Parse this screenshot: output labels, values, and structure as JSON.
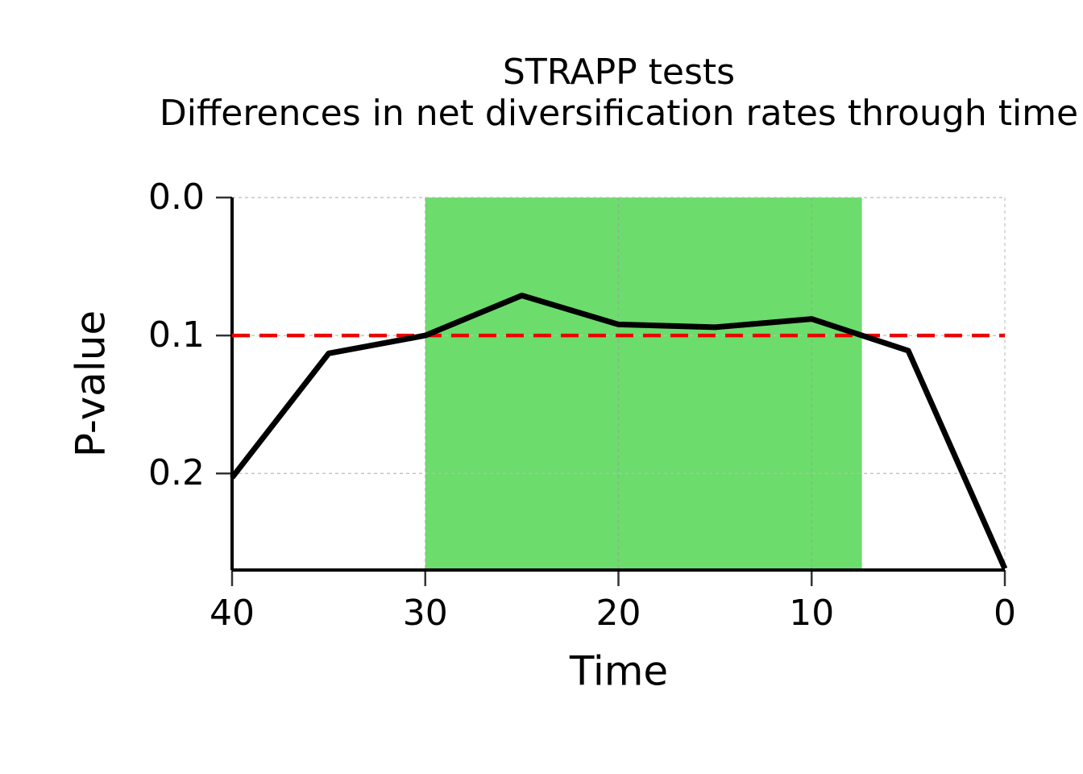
{
  "chart_data": {
    "type": "line",
    "title": "STRAPP tests",
    "subtitle": "Differences in net diversification rates through time",
    "x_label": "Time",
    "y_label": "P-value",
    "x": [
      40,
      35,
      30,
      25,
      20,
      15,
      10,
      5,
      0
    ],
    "series": [
      {
        "color": "#000000",
        "values": [
          0.203,
          0.113,
          0.1,
          0.071,
          0.092,
          0.094,
          0.088,
          0.111,
          0.269
        ]
      }
    ],
    "xlim": [
      40,
      0
    ],
    "xticks": [
      40,
      30,
      20,
      10,
      0
    ],
    "ylim": [
      0.27,
      0
    ],
    "yticks": [
      {
        "value": 0,
        "label": "0.0"
      },
      0.1,
      0.2
    ],
    "grid": true,
    "shade": {
      "xlim": [
        30,
        7.4
      ],
      "color": "#6cdc6c"
    },
    "threshold": {
      "value": 0.1,
      "color": "#ee0000"
    }
  }
}
